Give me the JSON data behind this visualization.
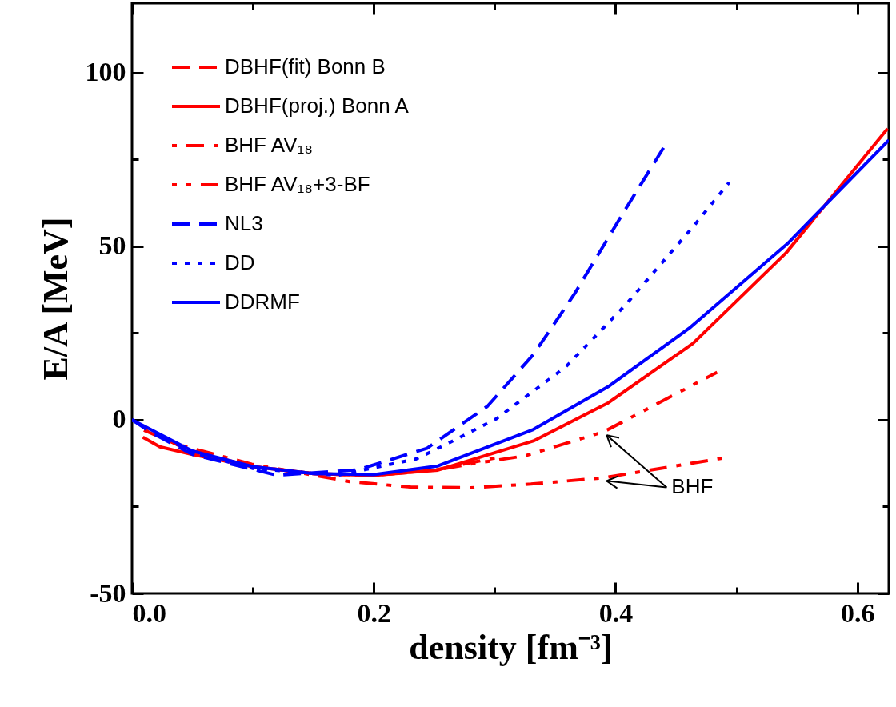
{
  "chart_data": {
    "type": "line",
    "xlabel": "density [fm⁻³]",
    "ylabel": "E/A [MeV]",
    "xlim": [
      0,
      0.626
    ],
    "xticks": [
      {
        "value": 0,
        "label": "0.0"
      },
      0.2,
      0.4,
      0.6
    ],
    "ylim": [
      -50,
      120
    ],
    "yticks": [
      -50,
      0,
      50,
      100
    ],
    "legend": "top left",
    "grid": false,
    "annotations": [
      {
        "text": "BHF",
        "x": 0.39,
        "y": -16.7
      }
    ],
    "series": [
      {
        "name": "DBHF(fit) Bonn B",
        "color": "#ff0000",
        "line_style": "dashed",
        "x": [
          0.01,
          0.05,
          0.1,
          0.15,
          0.2,
          0.25,
          0.3
        ],
        "values": [
          -3,
          -9,
          -13.5,
          -15.5,
          -16,
          -14.5,
          -11
        ]
      },
      {
        "name": "DBHF(proj.) Bonn A",
        "color": "#ff0000",
        "line_style": "solid",
        "x": [
          0.009,
          0.023,
          0.05,
          0.1,
          0.15,
          0.2,
          0.253,
          0.332,
          0.394,
          0.464,
          0.541,
          0.625
        ],
        "values": [
          -5,
          -7.8,
          -10,
          -13.5,
          -15.5,
          -16,
          -14.5,
          -6.1,
          4.9,
          22,
          48.1,
          83.9
        ]
      },
      {
        "name": "BHF AV₁₈",
        "color": "#ff0000",
        "line_style": "dashdot",
        "x": [
          0.01,
          0.041,
          0.099,
          0.18,
          0.231,
          0.28,
          0.33,
          0.39,
          0.488
        ],
        "values": [
          -3,
          -7.4,
          -12.8,
          -17.8,
          -19.4,
          -19.6,
          -18.5,
          -16.7,
          -11.1
        ]
      },
      {
        "name": "BHF AV₁₈+3-BF",
        "color": "#ff0000",
        "line_style": "dashdotdot",
        "x": [
          0.01,
          0.05,
          0.1,
          0.15,
          0.2,
          0.253,
          0.279,
          0.325,
          0.39,
          0.484
        ],
        "values": [
          -2,
          -9.5,
          -13.5,
          -15.5,
          -16,
          -14.4,
          -12.8,
          -10.4,
          -3.5,
          13.7
        ]
      },
      {
        "name": "NL3",
        "color": "#0000ff",
        "line_style": "dashed",
        "x": [
          0,
          0.015,
          0.05,
          0.12,
          0.187,
          0.244,
          0.294,
          0.332,
          0.366,
          0.407,
          0.442
        ],
        "values": [
          0,
          -3.5,
          -10,
          -16,
          -14.4,
          -8.2,
          3.9,
          18.8,
          36.3,
          60,
          79.7
        ]
      },
      {
        "name": "DD",
        "color": "#0000ff",
        "line_style": "dotted",
        "x": [
          0,
          0.05,
          0.1,
          0.17,
          0.235,
          0.262,
          0.301,
          0.359,
          0.409,
          0.465,
          0.494
        ],
        "values": [
          0,
          -9.5,
          -14,
          -16,
          -11.3,
          -6.7,
          0.2,
          15.3,
          33.4,
          56,
          68.4
        ]
      },
      {
        "name": "DDRMF",
        "color": "#0000ff",
        "line_style": "solid",
        "x": [
          0,
          0.05,
          0.1,
          0.15,
          0.2,
          0.253,
          0.332,
          0.395,
          0.462,
          0.542,
          0.626
        ],
        "values": [
          0,
          -9,
          -13.5,
          -15.5,
          -15.8,
          -13.3,
          -2.8,
          9.8,
          26.7,
          50.7,
          80.6
        ]
      }
    ]
  }
}
